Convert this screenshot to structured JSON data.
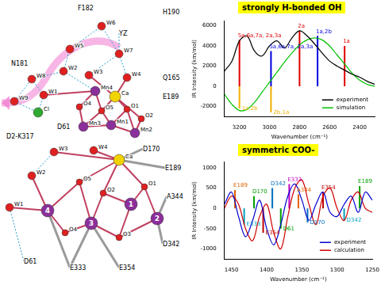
{
  "chart_data": [
    {
      "type": "line",
      "title": "strongly H-bonded OH",
      "x_label": "Wavenumber (cm⁻¹)",
      "y_label": "IR Intensity (km/mol)",
      "xlim": [
        3300,
        2300
      ],
      "xticks": [
        3200,
        3000,
        2800,
        2600,
        2400
      ],
      "ylim": [
        -3000,
        6500
      ],
      "yticks": [
        -2000,
        0,
        2000,
        4000,
        6000
      ],
      "grid": false,
      "legend": "lower right",
      "x": [
        3300,
        3250,
        3200,
        3150,
        3100,
        3050,
        3000,
        2950,
        2900,
        2850,
        2800,
        2750,
        2700,
        2650,
        2600,
        2550,
        2500,
        2450,
        2400,
        2350,
        2300
      ],
      "series": [
        {
          "name": "experiment",
          "color": "#000000",
          "values": [
            1500,
            2500,
            4500,
            5000,
            3500,
            3000,
            4000,
            4500,
            3800,
            4800,
            5500,
            5000,
            4200,
            3300,
            2500,
            2000,
            1600,
            1200,
            900,
            500,
            200
          ]
        },
        {
          "name": "simulation",
          "color": "#00c000",
          "values": [
            -800,
            -1800,
            -2400,
            -2300,
            -1600,
            -600,
            400,
            1400,
            2400,
            3300,
            4100,
            4600,
            4800,
            4600,
            4000,
            3100,
            2200,
            1300,
            600,
            200,
            0
          ]
        }
      ],
      "sticks": [
        {
          "x": 3200,
          "value": 4600,
          "color": "#e00000",
          "label": "5a,6a,7a, 2a,3a"
        },
        {
          "x": 2990,
          "value": 3500,
          "color": "#0000e0",
          "label": "5a,6a,7a, 2a,3a"
        },
        {
          "x": 2800,
          "value": 5500,
          "color": "#e00000",
          "label": "2a"
        },
        {
          "x": 2680,
          "value": 5000,
          "color": "#0000e0",
          "label": "1a,2b"
        },
        {
          "x": 2500,
          "value": 4000,
          "color": "#e00000",
          "label": "1a"
        },
        {
          "x": 3200,
          "value": -2200,
          "color": "#f0b000",
          "label": "1a,2b"
        },
        {
          "x": 2990,
          "value": -2600,
          "color": "#f0b000",
          "label": "2b,1a"
        }
      ]
    },
    {
      "type": "line",
      "title": "symmetric COO-",
      "x_label": "Wavenumber (cm⁻¹)",
      "y_label": "IR Intensity (km/mol)",
      "xlim": [
        1460,
        1250
      ],
      "xticks": [
        1450,
        1400,
        1350,
        1300,
        1250
      ],
      "ylim": [
        -1250,
        1150
      ],
      "yticks": [
        -1000,
        -500,
        0,
        500,
        1000
      ],
      "grid": false,
      "legend": "lower right",
      "x": [
        1460,
        1450,
        1440,
        1430,
        1420,
        1410,
        1400,
        1390,
        1380,
        1370,
        1360,
        1350,
        1340,
        1330,
        1320,
        1310,
        1300,
        1290,
        1280,
        1270,
        1260,
        1250
      ],
      "series": [
        {
          "name": "experiment",
          "color": "#0000d0",
          "values": [
            100,
            400,
            -200,
            -700,
            -300,
            200,
            -500,
            -900,
            -400,
            300,
            600,
            200,
            -300,
            100,
            400,
            -100,
            -200,
            100,
            300,
            -100,
            400,
            200
          ]
        },
        {
          "name": "calculation",
          "color": "#d00000",
          "values": [
            0,
            300,
            100,
            -500,
            -800,
            -200,
            100,
            -600,
            -1000,
            -200,
            500,
            700,
            100,
            -400,
            300,
            500,
            0,
            -300,
            200,
            400,
            0,
            -100
          ]
        }
      ],
      "sticks": [
        {
          "x": 1445,
          "value": 450,
          "color": "#e06000",
          "label": "E189"
        },
        {
          "x": 1432,
          "value": -400,
          "color": "#00a0c0",
          "label": "E333"
        },
        {
          "x": 1418,
          "value": 300,
          "color": "#00a000",
          "label": "D170"
        },
        {
          "x": 1405,
          "value": -600,
          "color": "#c00000",
          "label": "E354"
        },
        {
          "x": 1392,
          "value": 500,
          "color": "#0070c0",
          "label": "D342"
        },
        {
          "x": 1380,
          "value": -500,
          "color": "#00a000",
          "label": "D61"
        },
        {
          "x": 1368,
          "value": 600,
          "color": "#c000c0",
          "label": "E333"
        },
        {
          "x": 1355,
          "value": 350,
          "color": "#e06000",
          "label": "A344"
        },
        {
          "x": 1342,
          "value": -350,
          "color": "#0070c0",
          "label": "D170"
        },
        {
          "x": 1320,
          "value": 400,
          "color": "#c00000",
          "label": "E354"
        },
        {
          "x": 1290,
          "value": -300,
          "color": "#00a0c0",
          "label": "D342"
        },
        {
          "x": 1268,
          "value": 550,
          "color": "#00a000",
          "label": "E189"
        }
      ]
    }
  ],
  "diagrams": [
    {
      "atoms": [
        "F182",
        "W6",
        "YZ",
        "H190",
        "N181",
        "W5",
        "W7",
        "W2",
        "W3",
        "W4",
        "Q165",
        "W8",
        "W1",
        "Mn4",
        "Ca",
        "E189",
        "W9",
        "Cl",
        "O4",
        "O5",
        "O1",
        "O2",
        "Mn3",
        "Mn1",
        "Mn2",
        "D61",
        "D2-K317"
      ]
    },
    {
      "atoms": [
        "Ca",
        "W3",
        "W4",
        "D170",
        "E189",
        "W2",
        "O5",
        "O2",
        "O1",
        "A344",
        "W1",
        "4",
        "3",
        "2",
        "1",
        "O4",
        "O3",
        "D342",
        "D61",
        "E333",
        "E354"
      ]
    }
  ]
}
